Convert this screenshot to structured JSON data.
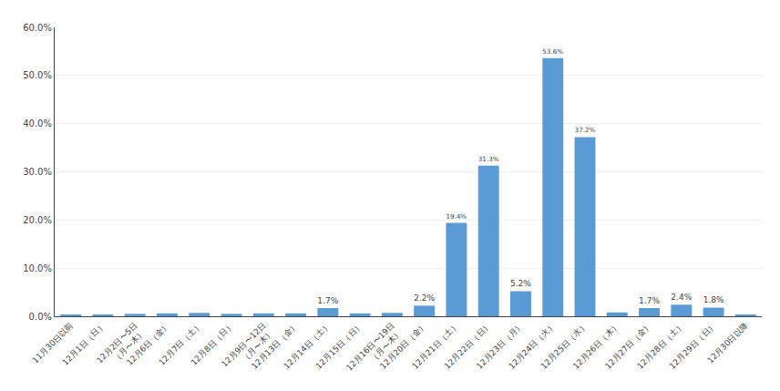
{
  "chart_data": {
    "type": "bar",
    "categories": [
      "11月30日以前",
      "12月1日（日）",
      "12月2日〜5日\n（月〜木）",
      "12月6日（金）",
      "12月7日（土）",
      "12月8日（日）",
      "12月9日〜12日\n（月〜木）",
      "12月13日（金）",
      "12月14日（土）",
      "12月15日（日）",
      "12月16日〜19日\n（月〜木）",
      "12月20日（金）",
      "12月21日（土）",
      "12月22日（日）",
      "12月23日（月）",
      "12月24日（火）",
      "12月25日（水）",
      "12月26日（木）",
      "12月27日（金）",
      "12月28日（土）",
      "12月29日（日）",
      "12月30日以降"
    ],
    "values": [
      0.2,
      0.3,
      0.5,
      0.6,
      0.7,
      0.5,
      0.6,
      0.6,
      1.7,
      0.6,
      0.7,
      2.2,
      19.4,
      31.3,
      5.2,
      53.6,
      37.2,
      0.8,
      1.7,
      2.4,
      1.8,
      0.3
    ],
    "value_labels": [
      null,
      null,
      null,
      null,
      null,
      null,
      null,
      null,
      "1.7%",
      null,
      null,
      "2.2%",
      "19.4%",
      "31.3%",
      "5.2%",
      "53.6%",
      "37.2%",
      null,
      "1.7%",
      "2.4%",
      "1.8%",
      null
    ],
    "data_labels": true,
    "color": "#5b9bd5",
    "ylim": [
      0,
      60
    ],
    "yticks": [
      {
        "value": 0,
        "label": "0.0%"
      },
      {
        "value": 10,
        "label": "10.0%"
      },
      {
        "value": 20,
        "label": "20.0%"
      },
      {
        "value": 30,
        "label": "30.0%"
      },
      {
        "value": 40,
        "label": "40.0%"
      },
      {
        "value": 50,
        "label": "50.0%"
      },
      {
        "value": 60,
        "label": "60.0%"
      }
    ],
    "grid": true
  }
}
